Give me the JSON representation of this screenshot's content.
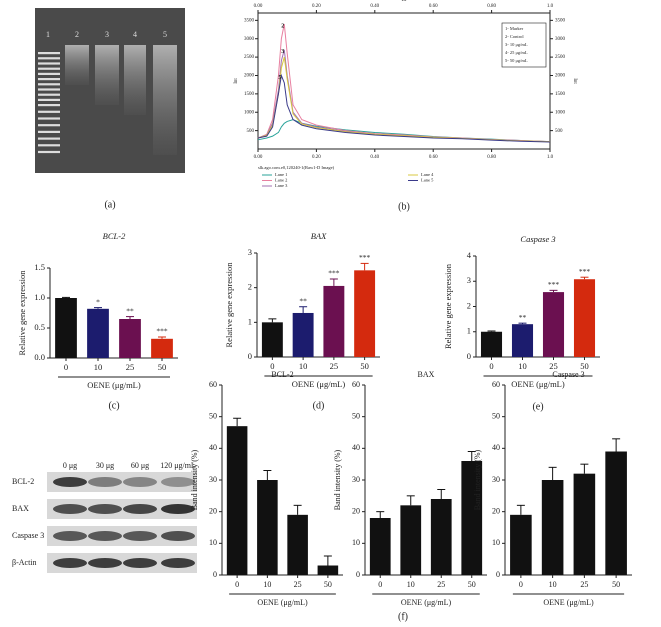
{
  "chart_data": [
    {
      "type": "line",
      "panel_label": "(b)",
      "xlabel": "Rf",
      "ylabel": "Int",
      "legend_title": "slk.ago.com.e0,120240-1(Raw1-D Image)",
      "legend_box": [
        "1- Marker",
        "2- Control",
        "3- 10 μg/mL",
        "4- 25 μg/mL",
        "5- 50 μg/mL"
      ],
      "x": [
        0,
        0.03,
        0.05,
        0.07,
        0.08,
        0.09,
        0.1,
        0.12,
        0.15,
        0.2,
        0.3,
        0.4,
        0.5,
        0.6,
        0.7,
        0.8,
        0.9,
        1.0
      ],
      "series": [
        {
          "name": "Lane 1",
          "color": "#2aa39a",
          "values": [
            250,
            300,
            350,
            450,
            600,
            700,
            750,
            800,
            700,
            620,
            520,
            450,
            400,
            340,
            300,
            270,
            230,
            200
          ]
        },
        {
          "name": "Lane 2",
          "color": "#e87fa0",
          "values": [
            300,
            400,
            800,
            2000,
            3000,
            3400,
            2600,
            1200,
            800,
            650,
            500,
            420,
            380,
            330,
            300,
            260,
            230,
            200
          ]
        },
        {
          "name": "Lane 3",
          "color": "#a070b0",
          "values": [
            300,
            380,
            700,
            1600,
            2400,
            2700,
            2000,
            1000,
            700,
            600,
            480,
            400,
            360,
            320,
            290,
            250,
            220,
            200
          ]
        },
        {
          "name": "Lane 4",
          "color": "#d8c840",
          "values": [
            300,
            370,
            650,
            1500,
            2200,
            2500,
            1900,
            950,
            680,
            580,
            470,
            400,
            360,
            320,
            290,
            250,
            220,
            200
          ]
        },
        {
          "name": "Lane 5",
          "color": "#3a3a8a",
          "values": [
            300,
            350,
            600,
            1500,
            2000,
            1800,
            1200,
            800,
            650,
            550,
            450,
            380,
            340,
            300,
            280,
            240,
            210,
            190
          ]
        }
      ],
      "annotations": [
        {
          "text": "2",
          "x": 0.09,
          "y": 3400
        },
        {
          "text": "3",
          "x": 0.09,
          "y": 2700
        },
        {
          "text": "5",
          "x": 0.08,
          "y": 2000
        }
      ],
      "xlim": [
        0,
        1
      ],
      "xticks": [
        {
          "value": 0,
          "label": "0.00"
        },
        {
          "value": 0.2,
          "label": "0.20"
        },
        {
          "value": 0.4,
          "label": "0.40"
        },
        {
          "value": 0.6,
          "label": "0.60"
        },
        {
          "value": 0.8,
          "label": "0.80"
        },
        {
          "value": 1,
          "label": "1.0"
        }
      ],
      "ylim": [
        0,
        3700
      ],
      "yticks": [
        500,
        1000,
        1500,
        2000,
        2500,
        3000,
        3500
      ]
    },
    {
      "type": "bar",
      "panel_label": "(c)",
      "title": "BCL-2",
      "title_italic": true,
      "ylabel": "Relative gene expression",
      "xlabel": "OENE (μg/mL)",
      "categories": [
        "0",
        "10",
        "25",
        "50"
      ],
      "values": [
        1.0,
        0.82,
        0.65,
        0.32
      ],
      "errors": [
        0.01,
        0.02,
        0.04,
        0.03
      ],
      "sig_labels": [
        null,
        "*",
        "**",
        "***"
      ],
      "colors": [
        "#111111",
        "#1c1c6e",
        "#6b1050",
        "#d42a0e"
      ],
      "ylim": [
        0,
        1.5
      ],
      "yticks": [
        {
          "value": 0,
          "label": "0.0"
        },
        0.5,
        {
          "value": 1,
          "label": "1.0"
        },
        1.5
      ]
    },
    {
      "type": "bar",
      "panel_label": "(d)",
      "title": "BAX",
      "title_italic": true,
      "ylabel": "Relative gene expression",
      "xlabel": "OENE (μg/mL)",
      "categories": [
        "0",
        "10",
        "25",
        "50"
      ],
      "values": [
        1.0,
        1.27,
        2.05,
        2.5
      ],
      "errors": [
        0.1,
        0.18,
        0.2,
        0.2
      ],
      "sig_labels": [
        null,
        "**",
        "***",
        "***"
      ],
      "colors": [
        "#111111",
        "#1c1c6e",
        "#6b1050",
        "#d42a0e"
      ],
      "ylim": [
        0,
        3
      ],
      "yticks": [
        0,
        1,
        2,
        3
      ]
    },
    {
      "type": "bar",
      "panel_label": "(e)",
      "title": "Caspase 3",
      "title_italic": true,
      "ylabel": "Relative gene expression",
      "xlabel": "OENE (μg/mL)",
      "categories": [
        "0",
        "10",
        "25",
        "50"
      ],
      "values": [
        1.0,
        1.3,
        2.57,
        3.08
      ],
      "errors": [
        0.03,
        0.04,
        0.07,
        0.08
      ],
      "sig_labels": [
        null,
        "**",
        "***",
        "***"
      ],
      "colors": [
        "#111111",
        "#1c1c6e",
        "#6b1050",
        "#d42a0e"
      ],
      "ylim": [
        0,
        4
      ],
      "yticks": [
        0,
        1,
        2,
        3,
        4
      ]
    },
    {
      "type": "bar",
      "title": "BCL-2",
      "title_italic": false,
      "ylabel": "Band intensity (%)",
      "xlabel": "OENE (μg/mL)",
      "categories": [
        "0",
        "10",
        "25",
        "50"
      ],
      "values": [
        47,
        30,
        19,
        3
      ],
      "errors": [
        2.5,
        3,
        3,
        3
      ],
      "colors": [
        "#111111",
        "#111111",
        "#111111",
        "#111111"
      ],
      "ylim": [
        0,
        60
      ],
      "yticks": [
        0,
        10,
        20,
        30,
        40,
        50,
        60
      ]
    },
    {
      "type": "bar",
      "title": "BAX",
      "title_italic": false,
      "ylabel": "Band intensity (%)",
      "xlabel": "OENE (μg/mL)",
      "categories": [
        "0",
        "10",
        "25",
        "50"
      ],
      "values": [
        18,
        22,
        24,
        36
      ],
      "errors": [
        2,
        3,
        3,
        3
      ],
      "colors": [
        "#111111",
        "#111111",
        "#111111",
        "#111111"
      ],
      "ylim": [
        0,
        60
      ],
      "yticks": [
        0,
        10,
        20,
        30,
        40,
        50,
        60
      ]
    },
    {
      "type": "bar",
      "title": "Caspase 3",
      "title_italic": false,
      "ylabel": "Band intensity (%)",
      "xlabel": "OENE (μg/mL)",
      "categories": [
        "0",
        "10",
        "25",
        "50"
      ],
      "values": [
        19,
        30,
        32,
        39
      ],
      "errors": [
        3,
        4,
        3,
        4
      ],
      "colors": [
        "#111111",
        "#111111",
        "#111111",
        "#111111"
      ],
      "ylim": [
        0,
        60
      ],
      "yticks": [
        0,
        10,
        20,
        30,
        40,
        50,
        60
      ]
    }
  ],
  "gel": {
    "panel_label": "(a)",
    "lanes": [
      "1",
      "2",
      "3",
      "4",
      "5"
    ]
  },
  "blot": {
    "panel_label": "(f)",
    "columns": [
      "0 μg",
      "30 μg",
      "60 μg",
      "120 μg/mL"
    ],
    "rows": [
      "BCL-2",
      "BAX",
      "Caspase 3",
      "β-Actin"
    ]
  }
}
